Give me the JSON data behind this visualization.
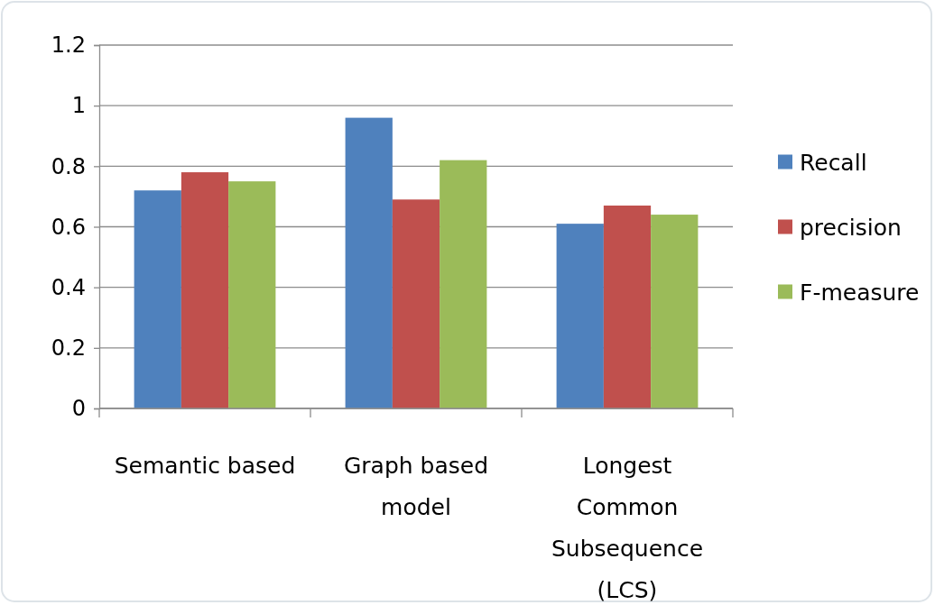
{
  "chart_data": {
    "type": "bar",
    "categories": [
      "Semantic based",
      "Graph based model",
      "Longest Common Subsequence (LCS)"
    ],
    "series": [
      {
        "name": "Recall",
        "color": "#4f81bd",
        "values": [
          0.72,
          0.96,
          0.61
        ]
      },
      {
        "name": "precision",
        "color": "#c0504d",
        "values": [
          0.78,
          0.69,
          0.67
        ]
      },
      {
        "name": "F-measure",
        "color": "#9bbb59",
        "values": [
          0.75,
          0.82,
          0.64
        ]
      }
    ],
    "ylim": [
      0,
      1.2
    ],
    "yticks": [
      0,
      0.2,
      0.4,
      0.6,
      0.8,
      1,
      1.2
    ],
    "grid": "y",
    "legend": "right"
  }
}
